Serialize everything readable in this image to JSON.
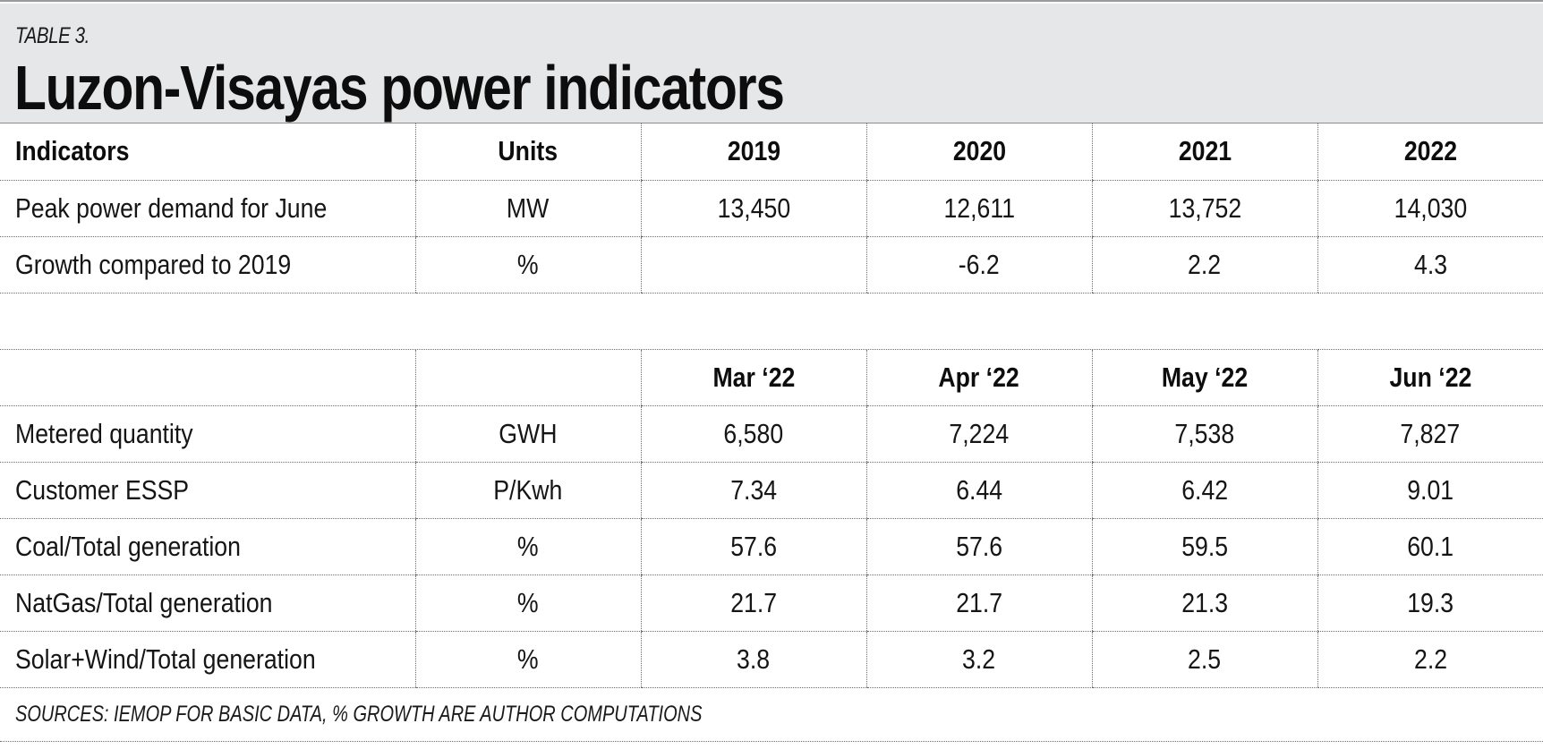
{
  "table_label": "TABLE 3.",
  "title": "Luzon-Visayas power indicators",
  "annual_table": {
    "headers": [
      "Indicators",
      "Units",
      "2019",
      "2020",
      "2021",
      "2022"
    ],
    "rows": [
      [
        "Peak power demand for June",
        "MW",
        "13,450",
        "12,611",
        "13,752",
        "14,030"
      ],
      [
        "Growth compared to 2019",
        "%",
        "",
        "-6.2",
        "2.2",
        "4.3"
      ]
    ]
  },
  "monthly_table": {
    "headers": [
      "",
      "",
      "Mar ‘22",
      "Apr ‘22",
      "May ‘22",
      "Jun ‘22"
    ],
    "rows": [
      [
        "Metered quantity",
        "GWH",
        "6,580",
        "7,224",
        "7,538",
        "7,827"
      ],
      [
        "Customer ESSP",
        "P/Kwh",
        "7.34",
        "6.44",
        "6.42",
        "9.01"
      ],
      [
        "Coal/Total generation",
        "%",
        "57.6",
        "57.6",
        "59.5",
        "60.1"
      ],
      [
        "NatGas/Total generation",
        "%",
        "21.7",
        "21.7",
        "21.3",
        "19.3"
      ],
      [
        "Solar+Wind/Total generation",
        "%",
        "3.8",
        "3.2",
        "2.5",
        "2.2"
      ]
    ]
  },
  "source_note": "SOURCES: IEMOP FOR BASIC DATA, % GROWTH ARE AUTHOR COMPUTATIONS"
}
